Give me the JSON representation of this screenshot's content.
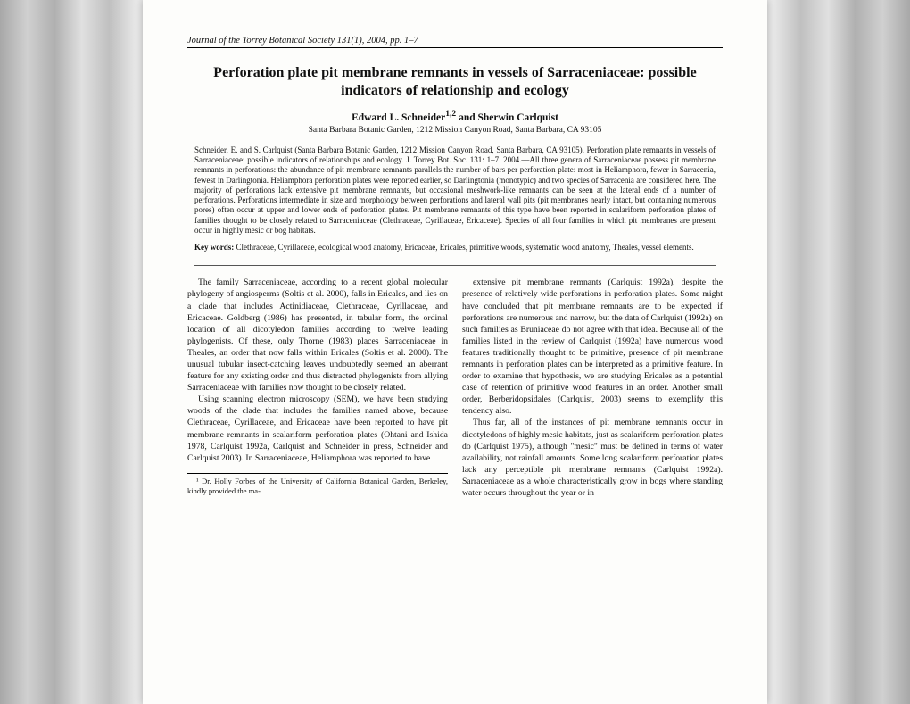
{
  "journal_header": "Journal of the Torrey Botanical Society 131(1), 2004, pp. 1–7",
  "title": "Perforation plate pit membrane remnants in vessels of Sarraceniaceae: possible indicators of relationship and ecology",
  "authors_html": "Edward L. Schneider",
  "authors_sup": "1,2",
  "authors_and": " and Sherwin Carlquist",
  "affiliation": "Santa Barbara Botanic Garden, 1212 Mission Canyon Road, Santa Barbara, CA 93105",
  "abstract_citation": "Schneider, E. and S. Carlquist (Santa Barbara Botanic Garden, 1212 Mission Canyon Road, Santa Barbara, CA 93105). Perforation plate remnants in vessels of Sarraceniaceae: possible indicators of relationships and ecology. J. Torrey Bot. Soc. 131: 1–7. 2004.—All three genera of Sarraceniaceae possess pit membrane remnants in perforations: the abundance of pit membrane remnants parallels the number of bars per perforation plate: most in Heliamphora, fewer in Sarracenia, fewest in Darlingtonia. Heliamphora perforation plates were reported earlier, so Darlingtonia (monotypic) and two species of Sarracenia are considered here. The majority of perforations lack extensive pit membrane remnants, but occasional meshwork-like remnants can be seen at the lateral ends of a number of perforations. Perforations intermediate in size and morphology between perforations and lateral wall pits (pit membranes nearly intact, but containing numerous pores) often occur at upper and lower ends of perforation plates. Pit membrane remnants of this type have been reported in scalariform perforation plates of families thought to be closely related to Sarraceniaceae (Clethraceae, Cyrillaceae, Ericaceae). Species of all four families in which pit membranes are present occur in highly mesic or bog habitats.",
  "keywords_label": "Key words:",
  "keywords_text": " Clethraceae, Cyrillaceae, ecological wood anatomy, Ericaceae, Ericales, primitive woods, systematic wood anatomy, Theales, vessel elements.",
  "body_p1": "The family Sarraceniaceae, according to a recent global molecular phylogeny of angiosperms (Soltis et al. 2000), falls in Ericales, and lies on a clade that includes Actinidiaceae, Clethraceae, Cyrillaceae, and Ericaceae. Goldberg (1986) has presented, in tabular form, the ordinal location of all dicotyledon families according to twelve leading phylogenists. Of these, only Thorne (1983) places Sarraceniaceae in Theales, an order that now falls within Ericales (Soltis et al. 2000). The unusual tubular insect-catching leaves undoubtedly seemed an aberrant feature for any existing order and thus distracted phylogenists from allying Sarraceniaceae with families now thought to be closely related.",
  "body_p2": "Using scanning electron microscopy (SEM), we have been studying woods of the clade that includes the families named above, because Clethraceae, Cyrillaceae, and Ericaceae have been reported to have pit membrane remnants in scalariform perforation plates (Ohtani and Ishida 1978, Carlquist 1992a, Carlquist and Schneider in press, Schneider and Carlquist 2003). In Sarraceniaceae, Heliamphora was reported to have",
  "body_p3": "extensive pit membrane remnants (Carlquist 1992a), despite the presence of relatively wide perforations in perforation plates. Some might have concluded that pit membrane remnants are to be expected if perforations are numerous and narrow, but the data of Carlquist (1992a) on such families as Bruniaceae do not agree with that idea. Because all of the families listed in the review of Carlquist (1992a) have numerous wood features traditionally thought to be primitive, presence of pit membrane remnants in perforation plates can be interpreted as a primitive feature. In order to examine that hypothesis, we are studying Ericales as a potential case of retention of primitive wood features in an order. Another small order, Berberidopsidales (Carlquist, 2003) seems to exemplify this tendency also.",
  "body_p4": "Thus far, all of the instances of pit membrane remnants occur in dicotyledons of highly mesic habitats, just as scalariform perforation plates do (Carlquist 1975), although \"mesic\" must be defined in terms of water availability, not rainfall amounts. Some long scalariform perforation plates lack any perceptible pit membrane remnants (Carlquist 1992a). Sarraceniaceae as a whole characteristically grow in bogs where standing water occurs throughout the year or in",
  "footnote": "¹ Dr. Holly Forbes of the University of California Botanical Garden, Berkeley, kindly provided the ma-"
}
